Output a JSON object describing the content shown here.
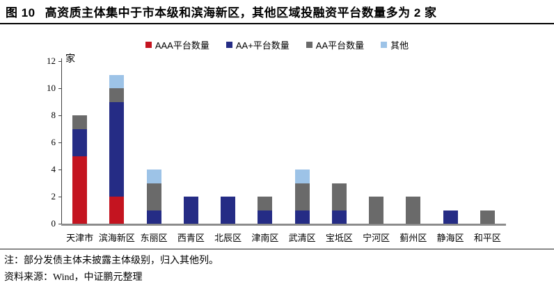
{
  "header": {
    "figure_label": "图 10",
    "title": "高资质主体集中于市本级和滨海新区，其他区域投融资平台数量多为 2 家"
  },
  "chart_data": {
    "type": "bar",
    "stacked": true,
    "title": "",
    "xlabel": "",
    "ylabel": "家",
    "ylim": [
      0,
      12
    ],
    "ytick_step": 2,
    "grid": false,
    "legend_position": "top",
    "categories": [
      "天津市",
      "滨海新区",
      "东丽区",
      "西青区",
      "北辰区",
      "津南区",
      "武清区",
      "宝坻区",
      "宁河区",
      "蓟州区",
      "静海区",
      "和平区"
    ],
    "series": [
      {
        "name": "AAA平台数量",
        "color": "#c41420",
        "textured": false,
        "values": [
          5,
          2,
          0,
          0,
          0,
          0,
          0,
          0,
          0,
          0,
          0,
          0
        ]
      },
      {
        "name": "AA+平台数量",
        "color": "#252c85",
        "textured": false,
        "values": [
          2,
          7,
          1,
          2,
          2,
          1,
          1,
          1,
          0,
          0,
          1,
          0
        ]
      },
      {
        "name": "AA平台数量",
        "color": "#6a6a6a",
        "textured": true,
        "values": [
          1,
          1,
          2,
          0,
          0,
          1,
          2,
          2,
          2,
          2,
          0,
          1
        ]
      },
      {
        "name": "其他",
        "color": "#9dc3e7",
        "textured": false,
        "values": [
          0,
          1,
          1,
          0,
          0,
          0,
          1,
          0,
          0,
          0,
          0,
          0
        ]
      }
    ],
    "totals": [
      8,
      11,
      4,
      2,
      2,
      2,
      4,
      3,
      2,
      2,
      1,
      1
    ]
  },
  "notes": {
    "note": "注：部分发债主体未披露主体级别，归入其他列。",
    "source": "资料来源：Wind，中证鹏元整理"
  }
}
